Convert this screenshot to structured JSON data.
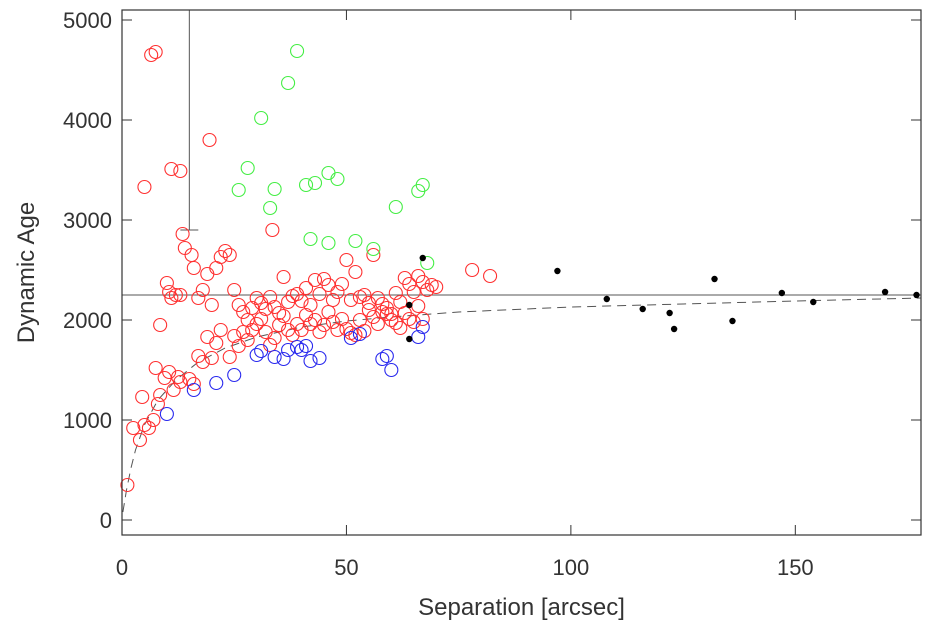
{
  "chart_data": {
    "type": "scatter",
    "title": "",
    "xlabel": "Separation [arcsec]",
    "ylabel": "Dynamic Age",
    "xlim": [
      0,
      178
    ],
    "ylim": [
      -150,
      5100
    ],
    "xticks": [
      0,
      50,
      100,
      150
    ],
    "xtick_labels": [
      "0",
      "50",
      "100",
      "150"
    ],
    "yticks": [
      0,
      1000,
      2000,
      3000,
      4000,
      5000
    ],
    "ytick_labels": [
      "0",
      "1000",
      "2000",
      "3000",
      "4000",
      "5000"
    ],
    "grid": false,
    "legend": "none",
    "colors": {
      "red": "#ff3030",
      "green": "#44ee44",
      "blue": "#2828ee",
      "black": "#000000",
      "axis": "#333333",
      "guide": "#555555"
    },
    "reference_line": {
      "y": 2250,
      "x_start": 0,
      "x_end": 178,
      "style": "solid"
    },
    "error_bar": {
      "x": 15,
      "y_low": 2900,
      "y_high": 5100,
      "cap_half_width": 2
    },
    "fit_curve": {
      "style": "dashed",
      "points": [
        [
          0.2,
          80
        ],
        [
          1,
          300
        ],
        [
          2,
          520
        ],
        [
          3,
          700
        ],
        [
          5,
          950
        ],
        [
          8,
          1200
        ],
        [
          12,
          1400
        ],
        [
          17,
          1580
        ],
        [
          23,
          1720
        ],
        [
          30,
          1830
        ],
        [
          40,
          1930
        ],
        [
          50,
          1990
        ],
        [
          60,
          2030
        ],
        [
          75,
          2080
        ],
        [
          100,
          2130
        ],
        [
          125,
          2160
        ],
        [
          150,
          2190
        ],
        [
          178,
          2220
        ]
      ]
    },
    "series": [
      {
        "name": "red",
        "marker": "open-circle",
        "color": "#ff3030",
        "points": [
          [
            1.2,
            350
          ],
          [
            2.5,
            920
          ],
          [
            4,
            800
          ],
          [
            5,
            950
          ],
          [
            6,
            920
          ],
          [
            7,
            1000
          ],
          [
            4.5,
            1230
          ],
          [
            8,
            1160
          ],
          [
            8.5,
            1250
          ],
          [
            9.5,
            1420
          ],
          [
            10.5,
            1480
          ],
          [
            11.5,
            1300
          ],
          [
            12.5,
            1430
          ],
          [
            13,
            1380
          ],
          [
            15,
            1410
          ],
          [
            7.5,
            1520
          ],
          [
            16,
            1360
          ],
          [
            17,
            1640
          ],
          [
            18,
            1580
          ],
          [
            19,
            1830
          ],
          [
            20,
            1620
          ],
          [
            21,
            1770
          ],
          [
            22,
            1900
          ],
          [
            24,
            1630
          ],
          [
            25,
            1840
          ],
          [
            26,
            1740
          ],
          [
            27,
            1880
          ],
          [
            28,
            1800
          ],
          [
            29,
            1900
          ],
          [
            30,
            1960
          ],
          [
            31,
            2010
          ],
          [
            32,
            1880
          ],
          [
            33,
            1750
          ],
          [
            34,
            1820
          ],
          [
            35,
            1950
          ],
          [
            36,
            2040
          ],
          [
            37,
            1900
          ],
          [
            38,
            1850
          ],
          [
            39,
            1960
          ],
          [
            40,
            1900
          ],
          [
            41,
            2050
          ],
          [
            42,
            1960
          ],
          [
            43,
            2000
          ],
          [
            44,
            1880
          ],
          [
            45,
            1950
          ],
          [
            46,
            2080
          ],
          [
            47,
            1980
          ],
          [
            48,
            1900
          ],
          [
            49,
            2010
          ],
          [
            50,
            1910
          ],
          [
            51,
            1870
          ],
          [
            52,
            1850
          ],
          [
            53,
            2000
          ],
          [
            54,
            1890
          ],
          [
            55,
            2100
          ],
          [
            56,
            2030
          ],
          [
            57,
            1960
          ],
          [
            58,
            2080
          ],
          [
            59,
            2060
          ],
          [
            60,
            2000
          ],
          [
            61,
            1970
          ],
          [
            62,
            1920
          ],
          [
            63,
            2070
          ],
          [
            64,
            2010
          ],
          [
            65,
            1980
          ],
          [
            66,
            2140
          ],
          [
            67,
            2010
          ],
          [
            8.5,
            1950
          ],
          [
            10,
            2370
          ],
          [
            10.5,
            2280
          ],
          [
            11,
            2220
          ],
          [
            12,
            2250
          ],
          [
            13,
            2250
          ],
          [
            14,
            2720
          ],
          [
            15.5,
            2650
          ],
          [
            16,
            2520
          ],
          [
            17,
            2220
          ],
          [
            18,
            2300
          ],
          [
            19,
            2460
          ],
          [
            20,
            2150
          ],
          [
            21,
            2520
          ],
          [
            22,
            2630
          ],
          [
            23,
            2690
          ],
          [
            24,
            2650
          ],
          [
            25,
            2300
          ],
          [
            26,
            2150
          ],
          [
            27,
            2080
          ],
          [
            28,
            2000
          ],
          [
            29,
            2120
          ],
          [
            30,
            2220
          ],
          [
            31,
            2170
          ],
          [
            32,
            2110
          ],
          [
            33,
            2230
          ],
          [
            34,
            2130
          ],
          [
            35,
            2070
          ],
          [
            36,
            2430
          ],
          [
            37,
            2180
          ],
          [
            38,
            2240
          ],
          [
            39,
            2260
          ],
          [
            40,
            2190
          ],
          [
            41,
            2320
          ],
          [
            42,
            2150
          ],
          [
            43,
            2400
          ],
          [
            44,
            2260
          ],
          [
            45,
            2410
          ],
          [
            46,
            2350
          ],
          [
            47,
            2200
          ],
          [
            48,
            2280
          ],
          [
            49,
            2360
          ],
          [
            50,
            2600
          ],
          [
            51,
            2200
          ],
          [
            52,
            2480
          ],
          [
            53,
            2230
          ],
          [
            54,
            2250
          ],
          [
            55,
            2170
          ],
          [
            56,
            2650
          ],
          [
            57,
            2220
          ],
          [
            58,
            2160
          ],
          [
            59,
            2120
          ],
          [
            60,
            2060
          ],
          [
            61,
            2270
          ],
          [
            62,
            2180
          ],
          [
            63,
            2420
          ],
          [
            64,
            2360
          ],
          [
            65,
            2280
          ],
          [
            66,
            2440
          ],
          [
            67,
            2380
          ],
          [
            68,
            2300
          ],
          [
            69,
            2350
          ],
          [
            70,
            2330
          ],
          [
            78,
            2500
          ],
          [
            82,
            2440
          ],
          [
            6.5,
            4650
          ],
          [
            7.5,
            4680
          ],
          [
            5,
            3330
          ],
          [
            11,
            3510
          ],
          [
            13,
            3490
          ],
          [
            13.5,
            2860
          ],
          [
            19.5,
            3800
          ],
          [
            33.5,
            2900
          ]
        ]
      },
      {
        "name": "green",
        "marker": "open-circle",
        "color": "#44ee44",
        "points": [
          [
            39,
            4690
          ],
          [
            37,
            4370
          ],
          [
            31,
            4020
          ],
          [
            28,
            3520
          ],
          [
            26,
            3300
          ],
          [
            34,
            3310
          ],
          [
            33,
            3120
          ],
          [
            41,
            3350
          ],
          [
            43,
            3370
          ],
          [
            46,
            3470
          ],
          [
            48,
            3410
          ],
          [
            66,
            3290
          ],
          [
            67,
            3350
          ],
          [
            61,
            3130
          ],
          [
            42,
            2810
          ],
          [
            46,
            2770
          ],
          [
            52,
            2790
          ],
          [
            56,
            2710
          ],
          [
            68,
            2570
          ]
        ]
      },
      {
        "name": "blue",
        "marker": "open-circle",
        "color": "#2828ee",
        "points": [
          [
            10,
            1060
          ],
          [
            16,
            1300
          ],
          [
            21,
            1370
          ],
          [
            25,
            1450
          ],
          [
            30,
            1650
          ],
          [
            31,
            1690
          ],
          [
            34,
            1630
          ],
          [
            36,
            1610
          ],
          [
            37,
            1700
          ],
          [
            39,
            1730
          ],
          [
            40,
            1700
          ],
          [
            41,
            1740
          ],
          [
            42,
            1590
          ],
          [
            44,
            1620
          ],
          [
            51,
            1820
          ],
          [
            53,
            1860
          ],
          [
            58,
            1610
          ],
          [
            59,
            1640
          ],
          [
            60,
            1500
          ],
          [
            66,
            1830
          ],
          [
            67,
            1930
          ]
        ]
      },
      {
        "name": "black",
        "marker": "filled-dot",
        "color": "#000000",
        "points": [
          [
            64,
            2150
          ],
          [
            64,
            1810
          ],
          [
            67,
            2620
          ],
          [
            97,
            2490
          ],
          [
            108,
            2210
          ],
          [
            116,
            2110
          ],
          [
            122,
            2070
          ],
          [
            123,
            1910
          ],
          [
            132,
            2410
          ],
          [
            136,
            1990
          ],
          [
            147,
            2270
          ],
          [
            154,
            2180
          ],
          [
            170,
            2280
          ],
          [
            177,
            2250
          ]
        ]
      }
    ]
  }
}
